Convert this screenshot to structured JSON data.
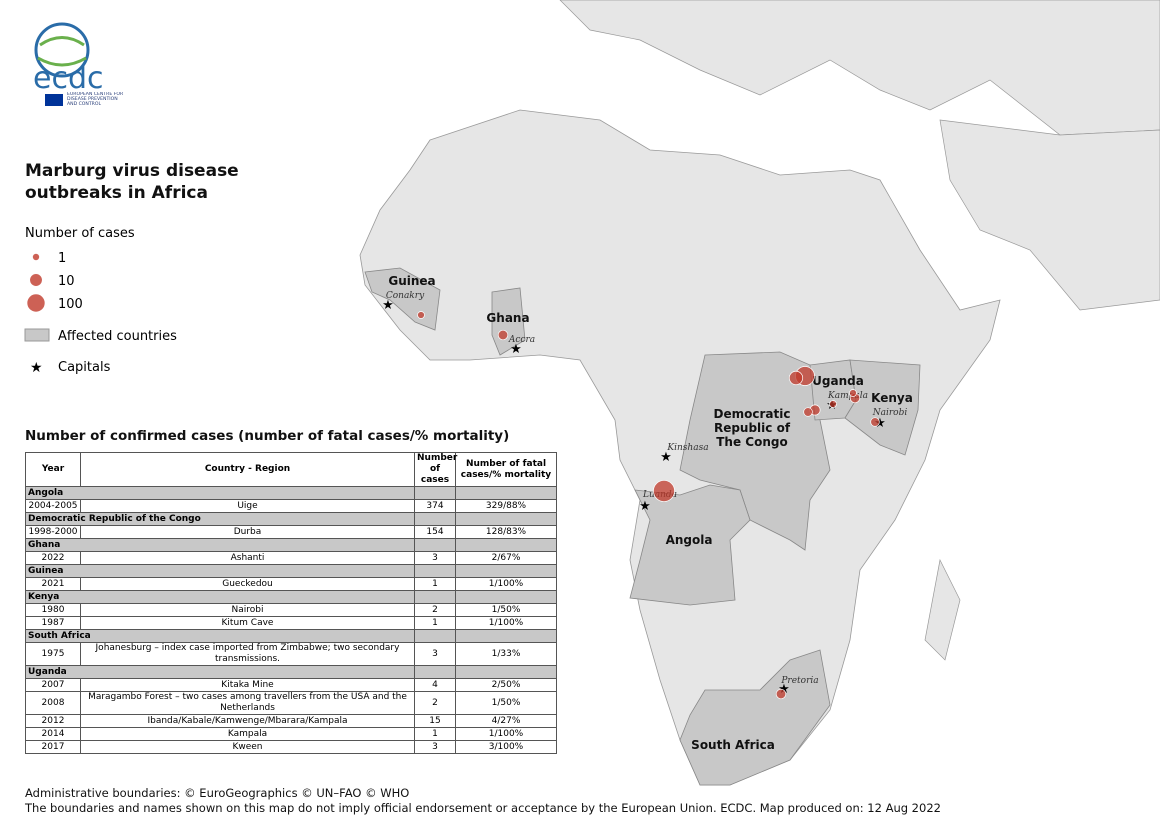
{
  "logo": {
    "name": "ecdc",
    "subtitle": "EUROPEAN CENTRE FOR DISEASE PREVENTION AND CONTROL"
  },
  "title": "Marburg virus disease outbreaks in Africa",
  "legend": {
    "size_title": "Number of cases",
    "sizes": [
      1,
      10,
      100
    ],
    "affected": "Affected countries",
    "capitals": "Capitals"
  },
  "map": {
    "countries": [
      "Guinea",
      "Ghana",
      "Uganda",
      "Kenya",
      "Democratic Republic of The Congo",
      "Angola",
      "South Africa"
    ],
    "capitals": [
      "Conakry",
      "Accra",
      "Kampala",
      "Nairobi",
      "Kinshasa",
      "Luanda",
      "Pretoria"
    ]
  },
  "table": {
    "title": "Number of confirmed cases (number of fatal cases/% mortality)",
    "columns": [
      "Year",
      "Country - Region",
      "Number of cases",
      "Number of fatal cases/% mortality"
    ],
    "groups": [
      {
        "country": "Angola",
        "rows": [
          [
            "2004-2005",
            "Uige",
            374,
            "329/88%"
          ]
        ]
      },
      {
        "country": "Democratic Republic of the Congo",
        "rows": [
          [
            "1998-2000",
            "Durba",
            154,
            "128/83%"
          ]
        ]
      },
      {
        "country": "Ghana",
        "rows": [
          [
            "2022",
            "Ashanti",
            3,
            "2/67%"
          ]
        ]
      },
      {
        "country": "Guinea",
        "rows": [
          [
            "2021",
            "Gueckedou",
            1,
            "1/100%"
          ]
        ]
      },
      {
        "country": "Kenya",
        "rows": [
          [
            "1980",
            "Nairobi",
            2,
            "1/50%"
          ],
          [
            "1987",
            "Kitum Cave",
            1,
            "1/100%"
          ]
        ]
      },
      {
        "country": "South Africa",
        "rows": [
          [
            "1975",
            "Johanesburg – index case imported from Zimbabwe; two secondary transmissions.",
            3,
            "1/33%"
          ]
        ]
      },
      {
        "country": "Uganda",
        "rows": [
          [
            "2007",
            "Kitaka Mine",
            4,
            "2/50%"
          ],
          [
            "2008",
            "Maragambo Forest – two cases among travellers from the USA and the Netherlands",
            2,
            "1/50%"
          ],
          [
            "2012",
            "Ibanda/Kabale/Kamwenge/Mbarara/Kampala",
            15,
            "4/27%"
          ],
          [
            "2014",
            "Kampala",
            1,
            "1/100%"
          ],
          [
            "2017",
            "Kween",
            3,
            "3/100%"
          ]
        ]
      }
    ]
  },
  "footer": [
    "Administrative boundaries: © EuroGeographics © UN–FAO © WHO",
    "The boundaries and names shown on this map do not imply official endorsement or acceptance by the European Union. ECDC. Map produced on: 12 Aug 2022"
  ]
}
